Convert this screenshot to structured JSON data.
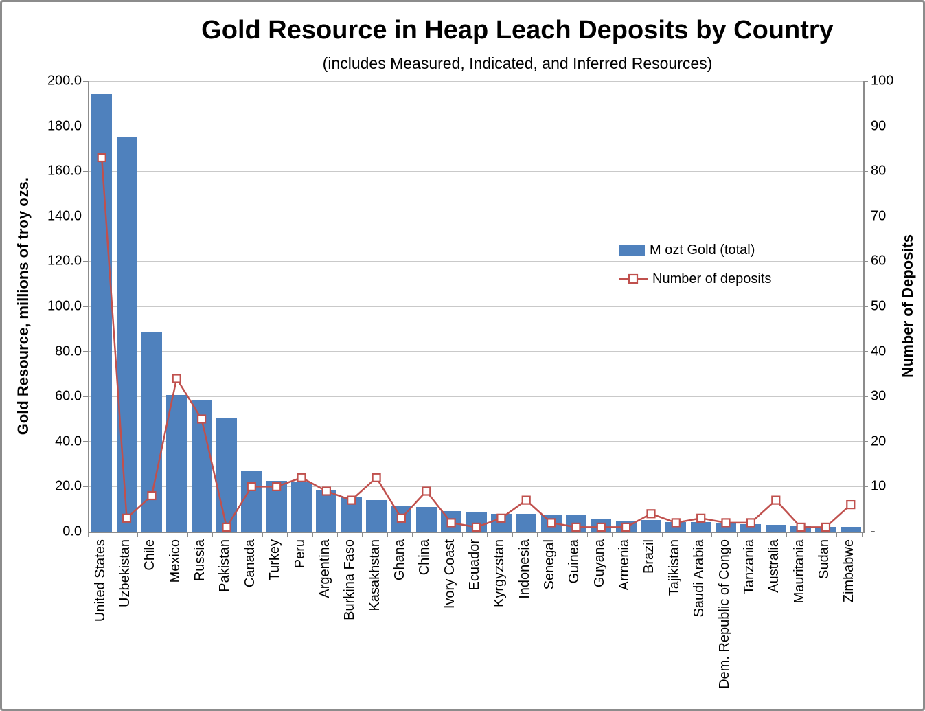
{
  "chart_data": {
    "type": "bar+line",
    "title": "Gold Resource in Heap Leach Deposits by Country",
    "subtitle": "(includes Measured, Indicated, and Inferred Resources)",
    "categories": [
      "United States",
      "Uzbekistan",
      "Chile",
      "Mexico",
      "Russia",
      "Pakistan",
      "Canada",
      "Turkey",
      "Peru",
      "Argentina",
      "Burkina Faso",
      "Kasakhstan",
      "Ghana",
      "China",
      "Ivory Coast",
      "Ecuador",
      "Kyrgyzstan",
      "Indonesia",
      "Senegal",
      "Guinea",
      "Guyana",
      "Armenia",
      "Brazil",
      "Tajikistan",
      "Saudi Arabia",
      "Dem. Republic of Congo",
      "Tanzania",
      "Australia",
      "Mauritania",
      "Sudan",
      "Zimbabwe"
    ],
    "series": [
      {
        "name": "M ozt Gold (total)",
        "type": "bar",
        "yaxis": "left",
        "color": "#4F81BD",
        "values": [
          194.2,
          175.3,
          88.4,
          60.7,
          58.5,
          50.3,
          26.8,
          22.6,
          22.0,
          18.3,
          15.5,
          14.0,
          11.6,
          11.0,
          9.1,
          8.8,
          7.9,
          7.9,
          7.3,
          7.3,
          5.8,
          4.6,
          5.2,
          4.3,
          4.3,
          3.7,
          3.4,
          3.0,
          2.4,
          2.1,
          2.1
        ]
      },
      {
        "name": "Number of deposits",
        "type": "line",
        "yaxis": "right",
        "color": "#C0504D",
        "marker": "square",
        "marker_fill": "#FFFFFF",
        "values": [
          83,
          3,
          8,
          34,
          25,
          1,
          10,
          10,
          12,
          9,
          7,
          12,
          3,
          9,
          2,
          1,
          3,
          7,
          2,
          1,
          1,
          1,
          4,
          2,
          3,
          2,
          2,
          7,
          1,
          1,
          6
        ]
      }
    ],
    "left_axis": {
      "label": "Gold Resource, millions of troy ozs.",
      "min": 0,
      "max": 200,
      "tick_labels": [
        "200.0",
        "180.0",
        "160.0",
        "140.0",
        "120.0",
        "100.0",
        "80.0",
        "60.0",
        "40.0",
        "20.0",
        "0.0"
      ]
    },
    "right_axis": {
      "label": "Number of Deposits",
      "min": 0,
      "max": 100,
      "tick_labels": [
        "100",
        "90",
        "80",
        "70",
        "60",
        "50",
        "40",
        "30",
        "20",
        "10",
        "-"
      ]
    },
    "grid": true,
    "legend_position": "middle-right"
  }
}
